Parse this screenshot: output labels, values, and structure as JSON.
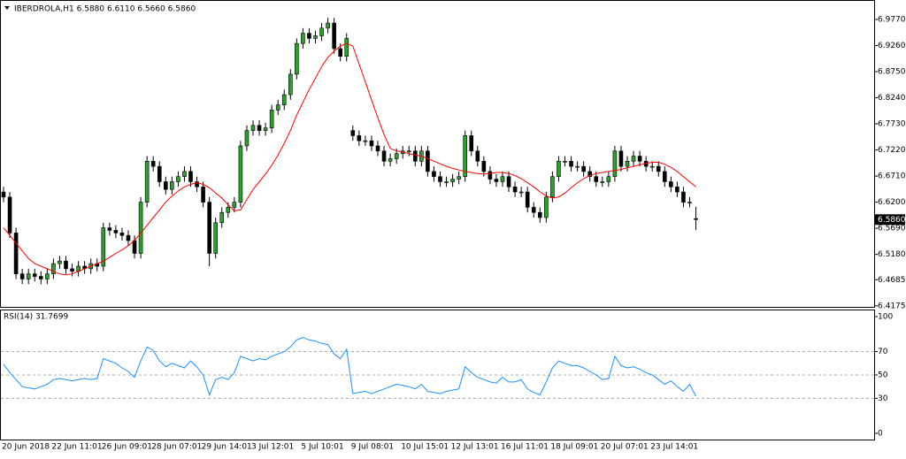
{
  "chart_data": [
    {
      "type": "candlestick",
      "title": "IBERDROLA,H1 6.5880 6.6110 6.5660 6.5860",
      "categories": [
        "20 Jun 2018",
        null,
        null,
        null,
        null,
        null,
        null,
        null,
        "22 Jun 11:01",
        null,
        null,
        null,
        null,
        null,
        null,
        null,
        "26 Jun 09:01",
        null,
        null,
        null,
        null,
        null,
        null,
        null,
        "28 Jun 07:01",
        null,
        null,
        null,
        null,
        null,
        null,
        null,
        "29 Jun 14:01",
        null,
        null,
        null,
        null,
        null,
        null,
        null,
        "3 Jul 12:01",
        null,
        null,
        null,
        null,
        null,
        null,
        null,
        "5 Jul 10:01",
        null,
        null,
        null,
        null,
        null,
        null,
        null,
        "9 Jul 08:01",
        null,
        null,
        null,
        null,
        null,
        null,
        null,
        "10 Jul 15:01",
        null,
        null,
        null,
        null,
        null,
        null,
        null,
        "12 Jul 13:01",
        null,
        null,
        null,
        null,
        null,
        null,
        null,
        "16 Jul 11:01",
        null,
        null,
        null,
        null,
        null,
        null,
        null,
        "18 Jul 09:01",
        null,
        null,
        null,
        null,
        null,
        null,
        null,
        "20 Jul 07:01",
        null,
        null,
        null,
        null,
        null,
        null,
        null,
        "23 Jul 14:01",
        null,
        null,
        null,
        null,
        null,
        null,
        null
      ],
      "open": [
        6.64,
        6.63,
        6.56,
        6.48,
        6.47,
        6.48,
        6.475,
        6.47,
        6.48,
        6.5,
        6.505,
        6.49,
        6.485,
        6.495,
        6.49,
        6.5,
        6.495,
        6.57,
        6.565,
        6.56,
        6.555,
        6.545,
        6.52,
        6.62,
        6.7,
        6.69,
        6.66,
        6.645,
        6.66,
        6.67,
        6.68,
        6.66,
        6.65,
        6.62,
        6.52,
        6.58,
        6.6,
        6.61,
        6.62,
        6.73,
        6.76,
        6.77,
        6.76,
        6.765,
        6.8,
        6.81,
        6.83,
        6.87,
        6.93,
        6.95,
        6.94,
        6.945,
        6.96,
        6.97,
        6.92,
        6.905,
        6.76,
        6.75,
        6.74,
        6.74,
        6.73,
        6.72,
        6.7,
        6.705,
        6.715,
        6.72,
        6.72,
        6.7,
        6.72,
        6.68,
        6.67,
        6.66,
        6.66,
        6.665,
        6.67,
        6.75,
        6.72,
        6.7,
        6.68,
        6.665,
        6.66,
        6.67,
        6.65,
        6.64,
        6.64,
        6.61,
        6.6,
        6.59,
        6.63,
        6.67,
        6.7,
        6.7,
        6.69,
        6.69,
        6.68,
        6.67,
        6.66,
        6.66,
        6.67,
        6.72,
        6.69,
        6.7,
        6.71,
        6.7,
        6.69,
        6.69,
        6.68,
        6.66,
        6.65,
        6.64,
        6.62,
        6.588
      ],
      "high": [
        6.65,
        6.64,
        6.57,
        6.49,
        6.49,
        6.49,
        6.485,
        6.49,
        6.51,
        6.515,
        6.515,
        6.5,
        6.505,
        6.505,
        6.51,
        6.51,
        6.58,
        6.58,
        6.575,
        6.57,
        6.565,
        6.555,
        6.63,
        6.71,
        6.71,
        6.7,
        6.67,
        6.67,
        6.68,
        6.69,
        6.69,
        6.67,
        6.66,
        6.63,
        6.59,
        6.61,
        6.62,
        6.63,
        6.74,
        6.77,
        6.78,
        6.78,
        6.775,
        6.81,
        6.82,
        6.84,
        6.88,
        6.94,
        6.96,
        6.96,
        6.955,
        6.97,
        6.98,
        6.98,
        6.93,
        6.95,
        6.77,
        6.76,
        6.75,
        6.75,
        6.74,
        6.73,
        6.715,
        6.725,
        6.73,
        6.73,
        6.73,
        6.73,
        6.73,
        6.69,
        6.68,
        6.67,
        6.675,
        6.68,
        6.76,
        6.76,
        6.73,
        6.71,
        6.69,
        6.675,
        6.68,
        6.68,
        6.66,
        6.65,
        6.65,
        6.62,
        6.61,
        6.64,
        6.68,
        6.71,
        6.71,
        6.71,
        6.7,
        6.7,
        6.69,
        6.68,
        6.67,
        6.68,
        6.73,
        6.73,
        6.71,
        6.72,
        6.72,
        6.71,
        6.7,
        6.7,
        6.69,
        6.67,
        6.66,
        6.65,
        6.63,
        6.611
      ],
      "low": [
        6.62,
        6.55,
        6.47,
        6.46,
        6.46,
        6.465,
        6.46,
        6.46,
        6.47,
        6.49,
        6.48,
        6.475,
        6.475,
        6.48,
        6.48,
        6.485,
        6.485,
        6.555,
        6.55,
        6.545,
        6.535,
        6.51,
        6.51,
        6.61,
        6.68,
        6.65,
        6.635,
        6.635,
        6.65,
        6.66,
        6.65,
        6.64,
        6.61,
        6.495,
        6.51,
        6.57,
        6.59,
        6.6,
        6.61,
        6.72,
        6.75,
        6.75,
        6.75,
        6.755,
        6.79,
        6.8,
        6.82,
        6.86,
        6.92,
        6.93,
        6.93,
        6.935,
        6.95,
        6.91,
        6.895,
        6.895,
        6.74,
        6.73,
        6.73,
        6.72,
        6.71,
        6.69,
        6.69,
        6.695,
        6.705,
        6.71,
        6.69,
        6.69,
        6.67,
        6.66,
        6.65,
        6.65,
        6.65,
        6.655,
        6.66,
        6.71,
        6.69,
        6.67,
        6.655,
        6.65,
        6.65,
        6.64,
        6.63,
        6.63,
        6.6,
        6.59,
        6.58,
        6.58,
        6.62,
        6.66,
        6.69,
        6.68,
        6.68,
        6.67,
        6.66,
        6.65,
        6.65,
        6.65,
        6.66,
        6.68,
        6.68,
        6.69,
        6.69,
        6.68,
        6.68,
        6.67,
        6.65,
        6.64,
        6.63,
        6.61,
        6.61,
        6.566
      ],
      "close": [
        6.63,
        6.56,
        6.48,
        6.47,
        6.48,
        6.475,
        6.47,
        6.48,
        6.5,
        6.505,
        6.49,
        6.485,
        6.495,
        6.49,
        6.5,
        6.495,
        6.57,
        6.565,
        6.56,
        6.555,
        6.545,
        6.52,
        6.62,
        6.7,
        6.69,
        6.66,
        6.645,
        6.66,
        6.67,
        6.68,
        6.66,
        6.65,
        6.62,
        6.52,
        6.58,
        6.6,
        6.61,
        6.62,
        6.73,
        6.76,
        6.77,
        6.76,
        6.765,
        6.8,
        6.81,
        6.83,
        6.87,
        6.93,
        6.95,
        6.94,
        6.945,
        6.96,
        6.97,
        6.92,
        6.905,
        6.94,
        6.75,
        6.74,
        6.74,
        6.73,
        6.72,
        6.7,
        6.705,
        6.715,
        6.72,
        6.72,
        6.7,
        6.72,
        6.68,
        6.67,
        6.66,
        6.66,
        6.665,
        6.67,
        6.75,
        6.72,
        6.7,
        6.68,
        6.665,
        6.66,
        6.67,
        6.65,
        6.64,
        6.64,
        6.61,
        6.6,
        6.59,
        6.63,
        6.67,
        6.7,
        6.7,
        6.69,
        6.69,
        6.68,
        6.67,
        6.66,
        6.66,
        6.67,
        6.72,
        6.69,
        6.7,
        6.71,
        6.7,
        6.69,
        6.69,
        6.68,
        6.66,
        6.65,
        6.64,
        6.62,
        6.62,
        6.586
      ],
      "bull_color": "#2ca02c",
      "bear_color": "#000000",
      "ma_values": [
        6.57,
        6.555,
        6.54,
        6.525,
        6.51,
        6.5,
        6.495,
        6.49,
        6.485,
        6.48,
        6.478,
        6.48,
        6.485,
        6.49,
        6.495,
        6.5,
        6.505,
        6.512,
        6.52,
        6.527,
        6.535,
        6.545,
        6.56,
        6.575,
        6.59,
        6.605,
        6.62,
        6.632,
        6.642,
        6.65,
        6.655,
        6.658,
        6.655,
        6.648,
        6.638,
        6.628,
        6.615,
        6.603,
        6.605,
        6.625,
        6.645,
        6.66,
        6.675,
        6.692,
        6.712,
        6.735,
        6.76,
        6.79,
        6.815,
        6.84,
        6.862,
        6.885,
        6.903,
        6.915,
        6.925,
        6.93,
        6.925,
        6.89,
        6.855,
        6.82,
        6.785,
        6.752,
        6.725,
        6.72,
        6.718,
        6.715,
        6.712,
        6.71,
        6.705,
        6.7,
        6.695,
        6.69,
        6.686,
        6.683,
        6.68,
        6.678,
        6.676,
        6.675,
        6.676,
        6.678,
        6.678,
        6.676,
        6.672,
        6.666,
        6.658,
        6.65,
        6.64,
        6.632,
        6.628,
        6.63,
        6.638,
        6.648,
        6.658,
        6.666,
        6.672,
        6.676,
        6.678,
        6.68,
        6.682,
        6.684,
        6.687,
        6.69,
        6.693,
        6.696,
        6.698,
        6.698,
        6.694,
        6.688,
        6.68,
        6.67,
        6.66,
        6.65
      ],
      "ma_color": "#ff0000",
      "current_price": {
        "value": 6.586,
        "label": "6.5860"
      },
      "ylim": [
        6.4155,
        7.0115
      ],
      "yticks": [
        {
          "value": 6.977,
          "label": "6.9770"
        },
        {
          "value": 6.926,
          "label": "6.9260"
        },
        {
          "value": 6.875,
          "label": "6.8750"
        },
        {
          "value": 6.824,
          "label": "6.8240"
        },
        {
          "value": 6.773,
          "label": "6.7730"
        },
        {
          "value": 6.722,
          "label": "6.7220"
        },
        {
          "value": 6.671,
          "label": "6.6710"
        },
        {
          "value": 6.62,
          "label": "6.6200"
        },
        {
          "value": 6.569,
          "label": "6.5690"
        },
        {
          "value": 6.518,
          "label": "6.5180"
        },
        6.4685,
        6.4175
      ]
    },
    {
      "type": "line",
      "title": "RSI(14) 31.7699",
      "values": [
        59,
        52,
        46,
        40,
        39,
        38,
        40,
        42,
        46,
        47,
        46,
        45,
        46,
        47,
        46,
        47,
        64,
        62,
        60,
        56,
        53,
        48,
        62,
        74,
        71,
        62,
        57,
        60,
        58,
        56,
        62,
        57,
        50,
        33,
        46,
        48,
        46,
        52,
        66,
        64,
        62,
        64,
        63,
        66,
        68,
        70,
        74,
        80,
        82,
        80,
        79,
        77,
        76,
        68,
        64,
        72,
        34,
        35,
        36,
        34,
        36,
        38,
        40,
        42,
        41,
        40,
        38,
        42,
        36,
        35,
        34,
        36,
        37,
        38,
        57,
        52,
        48,
        46,
        44,
        43,
        48,
        44,
        44,
        46,
        38,
        35,
        33,
        44,
        56,
        62,
        60,
        58,
        58,
        56,
        53,
        50,
        46,
        47,
        66,
        58,
        56,
        57,
        55,
        52,
        50,
        46,
        42,
        45,
        40,
        36,
        42,
        31.7699
      ],
      "color": "#1e90ff",
      "ylim": [
        -5.3,
        106
      ],
      "yticks": [
        100,
        70,
        50,
        30,
        0
      ],
      "levels": [
        70,
        50,
        30
      ]
    }
  ]
}
